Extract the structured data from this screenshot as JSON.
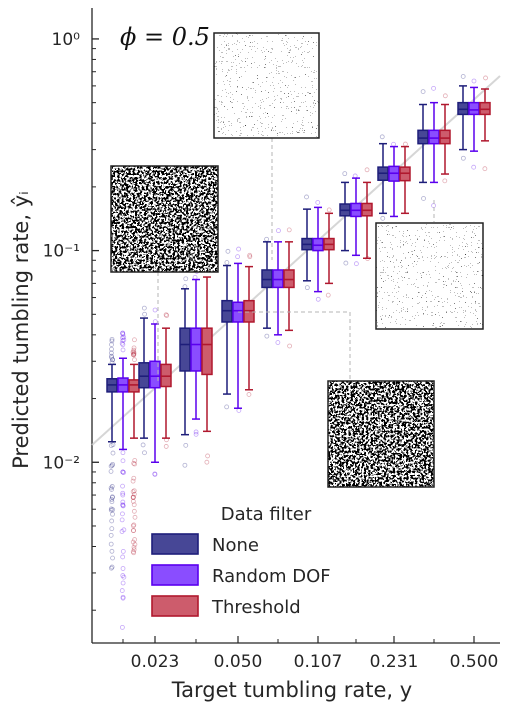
{
  "chart_data": {
    "type": "box",
    "annotation": "ϕ = 0.5",
    "xlabel": "Target tumbling rate, y",
    "ylabel": "Predicted tumbling rate, ŷᵢ",
    "xscale": "log",
    "yscale": "log",
    "ylim": [
      0.0014,
      1.4
    ],
    "x_major_ticks": [
      "0.023",
      "0.050",
      "0.107",
      "0.231",
      "0.500"
    ],
    "y_major_ticks": [
      {
        "value": 0.01,
        "label": "10⁻²"
      },
      {
        "value": 0.1,
        "label": "10⁻¹"
      },
      {
        "value": 1,
        "label": "10⁰"
      }
    ],
    "grid": false,
    "legend": {
      "title": "Data filter",
      "position": "lower-center"
    },
    "reference_line": "y = x (identity)",
    "series": [
      {
        "name": "None",
        "color": "#1e1e7a",
        "fill": "#474796"
      },
      {
        "name": "Random DOF",
        "color": "#5a00ee",
        "fill": "#8a4dff"
      },
      {
        "name": "Threshold",
        "color": "#b0182e",
        "fill": "#cd5c6c"
      }
    ],
    "groups": [
      {
        "target": 0.023,
        "boxes": [
          {
            "series": "None",
            "whislo": 0.0125,
            "q1": 0.0215,
            "med": 0.0232,
            "q3": 0.0248,
            "whishi": 0.029
          },
          {
            "series": "Random DOF",
            "whislo": 0.0115,
            "q1": 0.0215,
            "med": 0.0232,
            "q3": 0.025,
            "whishi": 0.031
          },
          {
            "series": "Threshold",
            "whislo": 0.013,
            "q1": 0.0215,
            "med": 0.0232,
            "q3": 0.0245,
            "whishi": 0.029
          }
        ]
      },
      {
        "target": 0.032,
        "boxes": [
          {
            "series": "None",
            "whislo": 0.013,
            "q1": 0.0225,
            "med": 0.0255,
            "q3": 0.0295,
            "whishi": 0.048
          },
          {
            "series": "Random DOF",
            "whislo": 0.01,
            "q1": 0.0225,
            "med": 0.0255,
            "q3": 0.03,
            "whishi": 0.045
          },
          {
            "series": "Threshold",
            "whislo": 0.013,
            "q1": 0.0228,
            "med": 0.0255,
            "q3": 0.029,
            "whishi": 0.043
          }
        ]
      },
      {
        "target": 0.036,
        "boxes": [
          {
            "series": "None",
            "whislo": 0.0135,
            "q1": 0.027,
            "med": 0.036,
            "q3": 0.043,
            "whishi": 0.066
          },
          {
            "series": "Random DOF",
            "whislo": 0.016,
            "q1": 0.027,
            "med": 0.036,
            "q3": 0.043,
            "whishi": 0.073
          },
          {
            "series": "Threshold",
            "whislo": 0.014,
            "q1": 0.026,
            "med": 0.036,
            "q3": 0.043,
            "whishi": 0.075
          }
        ]
      },
      {
        "target": 0.05,
        "boxes": [
          {
            "series": "None",
            "whislo": 0.021,
            "q1": 0.046,
            "med": 0.052,
            "q3": 0.058,
            "whishi": 0.085
          },
          {
            "series": "Random DOF",
            "whislo": 0.018,
            "q1": 0.046,
            "med": 0.052,
            "q3": 0.057,
            "whishi": 0.087
          },
          {
            "series": "Threshold",
            "whislo": 0.022,
            "q1": 0.046,
            "med": 0.052,
            "q3": 0.058,
            "whishi": 0.084
          }
        ]
      },
      {
        "target": 0.073,
        "boxes": [
          {
            "series": "None",
            "whislo": 0.043,
            "q1": 0.067,
            "med": 0.073,
            "q3": 0.081,
            "whishi": 0.11
          },
          {
            "series": "Random DOF",
            "whislo": 0.04,
            "q1": 0.067,
            "med": 0.073,
            "q3": 0.081,
            "whishi": 0.11
          },
          {
            "series": "Threshold",
            "whislo": 0.042,
            "q1": 0.067,
            "med": 0.073,
            "q3": 0.081,
            "whishi": 0.11
          }
        ]
      },
      {
        "target": 0.107,
        "boxes": [
          {
            "series": "None",
            "whislo": 0.072,
            "q1": 0.101,
            "med": 0.107,
            "q3": 0.114,
            "whishi": 0.157
          },
          {
            "series": "Random DOF",
            "whislo": 0.064,
            "q1": 0.1,
            "med": 0.106,
            "q3": 0.114,
            "whishi": 0.16
          },
          {
            "series": "Threshold",
            "whislo": 0.07,
            "q1": 0.101,
            "med": 0.107,
            "q3": 0.114,
            "whishi": 0.15
          }
        ]
      },
      {
        "target": 0.155,
        "boxes": [
          {
            "series": "None",
            "whislo": 0.1,
            "q1": 0.146,
            "med": 0.155,
            "q3": 0.166,
            "whishi": 0.21
          },
          {
            "series": "Random DOF",
            "whislo": 0.095,
            "q1": 0.145,
            "med": 0.155,
            "q3": 0.167,
            "whishi": 0.22
          },
          {
            "series": "Threshold",
            "whislo": 0.092,
            "q1": 0.146,
            "med": 0.155,
            "q3": 0.167,
            "whishi": 0.21
          }
        ]
      },
      {
        "target": 0.231,
        "boxes": [
          {
            "series": "None",
            "whislo": 0.15,
            "q1": 0.215,
            "med": 0.232,
            "q3": 0.248,
            "whishi": 0.32
          },
          {
            "series": "Random DOF",
            "whislo": 0.145,
            "q1": 0.213,
            "med": 0.232,
            "q3": 0.25,
            "whishi": 0.31
          },
          {
            "series": "Threshold",
            "whislo": 0.15,
            "q1": 0.214,
            "med": 0.232,
            "q3": 0.248,
            "whishi": 0.31
          }
        ]
      },
      {
        "target": 0.34,
        "boxes": [
          {
            "series": "None",
            "whislo": 0.21,
            "q1": 0.32,
            "med": 0.34,
            "q3": 0.37,
            "whishi": 0.49
          },
          {
            "series": "Random DOF",
            "whislo": 0.21,
            "q1": 0.32,
            "med": 0.34,
            "q3": 0.37,
            "whishi": 0.5
          },
          {
            "series": "Threshold",
            "whislo": 0.23,
            "q1": 0.32,
            "med": 0.34,
            "q3": 0.37,
            "whishi": 0.49
          }
        ]
      },
      {
        "target": 0.5,
        "boxes": [
          {
            "series": "None",
            "whislo": 0.3,
            "q1": 0.44,
            "med": 0.465,
            "q3": 0.5,
            "whishi": 0.6
          },
          {
            "series": "Random DOF",
            "whislo": 0.295,
            "q1": 0.44,
            "med": 0.462,
            "q3": 0.5,
            "whishi": 0.59
          },
          {
            "series": "Threshold",
            "whislo": 0.33,
            "q1": 0.44,
            "med": 0.465,
            "q3": 0.5,
            "whishi": 0.58
          }
        ]
      }
    ],
    "inset_images": 5
  }
}
